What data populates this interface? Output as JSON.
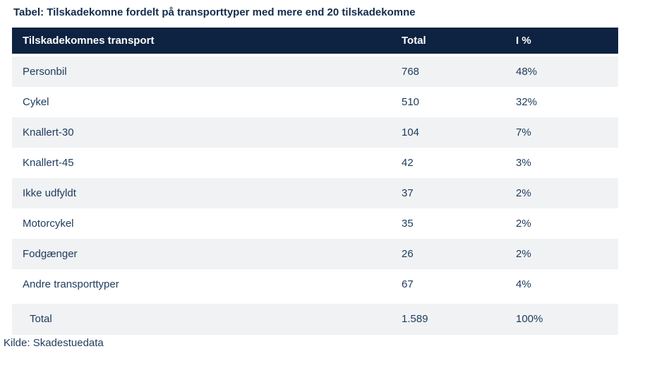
{
  "chart_data": {
    "type": "table",
    "title": "Tabel: Tilskadekomne fordelt på transporttyper med mere end 20 tilskadekomne",
    "columns": [
      "Tilskadekomnes transport",
      "Total",
      "I %"
    ],
    "rows": [
      {
        "label": "Personbil",
        "total": "768",
        "pct": "48%"
      },
      {
        "label": "Cykel",
        "total": "510",
        "pct": "32%"
      },
      {
        "label": "Knallert-30",
        "total": "104",
        "pct": "7%"
      },
      {
        "label": "Knallert-45",
        "total": "42",
        "pct": "3%"
      },
      {
        "label": "Ikke udfyldt",
        "total": "37",
        "pct": "2%"
      },
      {
        "label": "Motorcykel",
        "total": "35",
        "pct": "2%"
      },
      {
        "label": "Fodgænger",
        "total": "26",
        "pct": "2%"
      },
      {
        "label": "Andre transporttyper",
        "total": "67",
        "pct": "4%"
      }
    ],
    "total_row": {
      "label": "Total",
      "total": "1.589",
      "pct": "100%"
    },
    "source": "Kilde: Skadestuedata",
    "layout": {
      "legend": "none",
      "grid": "off",
      "row_striping": "alternating starting with shaded first row"
    }
  },
  "colors": {
    "header_bg": "#0e2241",
    "header_text": "#ffffff",
    "row_alt_bg": "#f0f2f4",
    "text": "#1d3a5c",
    "title": "#132c4d",
    "page_bg": "#ffffff"
  }
}
